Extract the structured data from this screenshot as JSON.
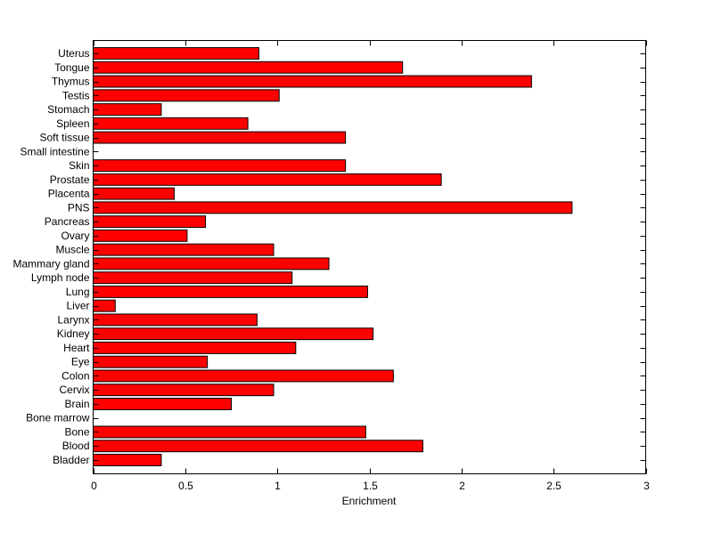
{
  "chart_data": {
    "type": "bar",
    "orientation": "horizontal",
    "title": "",
    "xlabel": "Enrichment",
    "ylabel": "",
    "xlim": [
      0,
      3
    ],
    "xticks": [
      "0",
      "0.5",
      "1",
      "1.5",
      "2",
      "2.5",
      "3"
    ],
    "xtick_values": [
      0,
      0.5,
      1,
      1.5,
      2,
      2.5,
      3
    ],
    "grid": false,
    "bar_color": "#ff0000",
    "categories": [
      "Bladder",
      "Blood",
      "Bone",
      "Bone marrow",
      "Brain",
      "Cervix",
      "Colon",
      "Eye",
      "Heart",
      "Kidney",
      "Larynx",
      "Liver",
      "Lung",
      "Lymph node",
      "Mammary gland",
      "Muscle",
      "Ovary",
      "Pancreas",
      "PNS",
      "Placenta",
      "Prostate",
      "Skin",
      "Small intestine",
      "Soft tissue",
      "Spleen",
      "Stomach",
      "Testis",
      "Thymus",
      "Tongue",
      "Uterus"
    ],
    "values": [
      0.37,
      1.79,
      1.48,
      0,
      0.75,
      0.98,
      1.63,
      0.62,
      1.1,
      1.52,
      0.89,
      0.12,
      1.49,
      1.08,
      1.28,
      0.98,
      0.51,
      0.61,
      2.6,
      0.44,
      1.89,
      1.37,
      0,
      1.37,
      0.84,
      0.37,
      1.01,
      2.38,
      1.68,
      0.9
    ]
  }
}
